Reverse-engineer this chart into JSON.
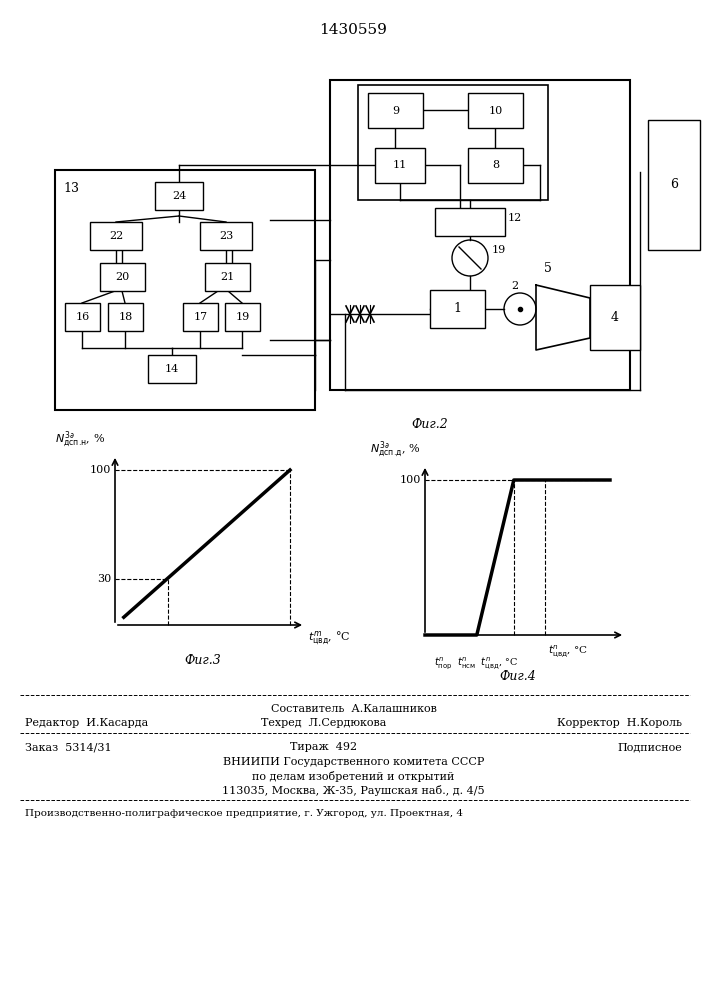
{
  "title": "1430559",
  "bg_color": "#ffffff",
  "fig3_caption": "Фиг.3",
  "fig4_caption": "Фиг.4",
  "fig2_caption": "Фиг.2",
  "footer_sestavitel": "Составитель  А.Калашников",
  "footer_editor": "Редактор  И.Касарда",
  "footer_tekhred": "Техред  Л.Сердюкова",
  "footer_korrektor": "Корректор  Н.Король",
  "footer_zakaz": "Заказ  5314/31",
  "footer_tirazh": "Тираж  492",
  "footer_podpisnoe": "Подписное",
  "footer_vniip1": "ВНИИПИ Государственного комитета СССР",
  "footer_vniip2": "по делам изобретений и открытий",
  "footer_vniip3": "113035, Москва, Ж-35, Раушская наб., д. 4/5",
  "footer_proizv": "Производственно-полиграфическое предприятие, г. Ужгород, ул. Проектная, 4"
}
